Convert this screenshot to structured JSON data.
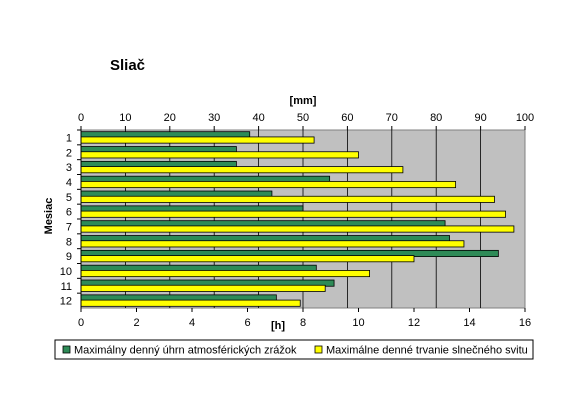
{
  "chart_data": {
    "type": "bar",
    "orientation": "horizontal",
    "title": "Sliač",
    "ylabel": "Mesiac",
    "categories": [
      "1",
      "2",
      "3",
      "4",
      "5",
      "6",
      "7",
      "8",
      "9",
      "10",
      "11",
      "12"
    ],
    "x_top_axis": {
      "label": "[mm]",
      "range": [
        0,
        100
      ],
      "ticks": [
        "0",
        "10",
        "20",
        "30",
        "40",
        "50",
        "60",
        "70",
        "80",
        "90",
        "100"
      ]
    },
    "x_bottom_axis": {
      "label": "[h]",
      "range": [
        0,
        16
      ],
      "ticks": [
        "0",
        "2",
        "4",
        "6",
        "8",
        "10",
        "12",
        "14",
        "16"
      ]
    },
    "series": [
      {
        "name": "Maximálny denný úhrn atmosférických zrážok",
        "axis": "top",
        "unit": "mm",
        "color": "#2e8b57",
        "values": [
          38,
          35,
          35,
          56,
          43,
          50,
          82,
          83,
          94,
          53,
          57,
          44
        ]
      },
      {
        "name": "Maximálne denné trvanie slnečného svitu",
        "axis": "bottom",
        "unit": "h",
        "color": "#ffff00",
        "values": [
          8.4,
          10.0,
          11.6,
          13.5,
          14.9,
          15.3,
          15.6,
          13.8,
          12.0,
          10.4,
          8.8,
          7.9
        ]
      }
    ],
    "plot_background": "#c0c0c0",
    "grid": true,
    "legend_position": "bottom"
  }
}
